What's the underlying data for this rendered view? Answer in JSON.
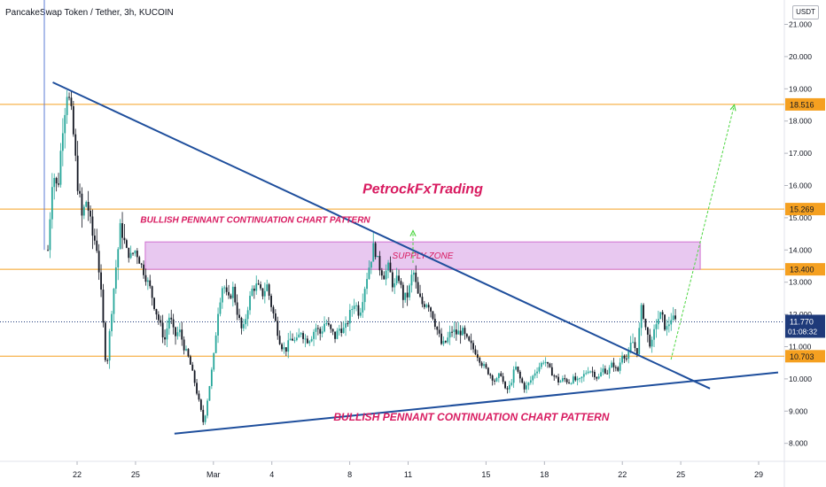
{
  "header": {
    "title": "PancakeSwap Token / Tether, 3h, KUCOIN",
    "currency": "USDT"
  },
  "colors": {
    "up": "#26a69a",
    "down": "#131722",
    "hline": "#f5a020",
    "trendline": "#1e4e9c",
    "arrow": "#4cd640",
    "zone_fill": "#e8c8f0",
    "zone_border": "#d070d0",
    "pattern_text": "#d81b60",
    "watermark": "#d81b60",
    "last_price": "#1e3a7a"
  },
  "chart_data": {
    "type": "candlestick",
    "symbol": "PancakeSwap Token / Tether",
    "interval": "3h",
    "exchange": "KUCOIN",
    "y_unit": "USDT",
    "ylim": [
      7.7,
      21.5
    ],
    "y_ticks": [
      "8.000",
      "9.000",
      "10.000",
      "11.000",
      "12.000",
      "13.000",
      "14.000",
      "15.000",
      "16.000",
      "17.000",
      "18.000",
      "19.000",
      "20.000",
      "21.000"
    ],
    "xlim": [
      "2021-02-20",
      "2021-03-30"
    ],
    "x_ticks": [
      {
        "date": "2021-02-22",
        "label": "22"
      },
      {
        "date": "2021-02-25",
        "label": "25"
      },
      {
        "date": "2021-03-01",
        "label": "Mar"
      },
      {
        "date": "2021-03-04",
        "label": "4"
      },
      {
        "date": "2021-03-08",
        "label": "8"
      },
      {
        "date": "2021-03-11",
        "label": "11"
      },
      {
        "date": "2021-03-15",
        "label": "15"
      },
      {
        "date": "2021-03-18",
        "label": "18"
      },
      {
        "date": "2021-03-22",
        "label": "22"
      },
      {
        "date": "2021-03-25",
        "label": "25"
      },
      {
        "date": "2021-03-29",
        "label": "29"
      }
    ],
    "price_path": [
      [
        "2021-02-20T12:00",
        14.0
      ],
      [
        "2021-02-20T18:00",
        16.5
      ],
      [
        "2021-02-21T00:00",
        15.8
      ],
      [
        "2021-02-21T06:00",
        17.8
      ],
      [
        "2021-02-21T12:00",
        19.0
      ],
      [
        "2021-02-21T18:00",
        18.0
      ],
      [
        "2021-02-22T00:00",
        16.2
      ],
      [
        "2021-02-22T06:00",
        15.0
      ],
      [
        "2021-02-22T12:00",
        15.6
      ],
      [
        "2021-02-22T18:00",
        14.5
      ],
      [
        "2021-02-23T00:00",
        14.2
      ],
      [
        "2021-02-23T06:00",
        12.5
      ],
      [
        "2021-02-23T12:00",
        10.2
      ],
      [
        "2021-02-23T18:00",
        12.0
      ],
      [
        "2021-02-24T00:00",
        13.5
      ],
      [
        "2021-02-24T06:00",
        14.8
      ],
      [
        "2021-02-24T12:00",
        14.0
      ],
      [
        "2021-02-24T18:00",
        13.8
      ],
      [
        "2021-02-25T00:00",
        14.0
      ],
      [
        "2021-02-25T06:00",
        13.6
      ],
      [
        "2021-02-25T12:00",
        13.2
      ],
      [
        "2021-02-25T18:00",
        12.8
      ],
      [
        "2021-02-26T00:00",
        12.2
      ],
      [
        "2021-02-26T06:00",
        11.7
      ],
      [
        "2021-02-26T12:00",
        11.2
      ],
      [
        "2021-02-26T18:00",
        12.0
      ],
      [
        "2021-02-27T00:00",
        11.3
      ],
      [
        "2021-02-27T06:00",
        11.5
      ],
      [
        "2021-02-27T12:00",
        11.0
      ],
      [
        "2021-02-27T18:00",
        10.6
      ],
      [
        "2021-02-28T00:00",
        10.0
      ],
      [
        "2021-02-28T06:00",
        9.3
      ],
      [
        "2021-02-28T12:00",
        8.6
      ],
      [
        "2021-02-28T18:00",
        9.6
      ],
      [
        "2021-03-01T00:00",
        10.6
      ],
      [
        "2021-03-01T06:00",
        12.2
      ],
      [
        "2021-03-01T12:00",
        13.0
      ],
      [
        "2021-03-01T18:00",
        12.4
      ],
      [
        "2021-03-02T00:00",
        12.8
      ],
      [
        "2021-03-02T06:00",
        12.0
      ],
      [
        "2021-03-02T12:00",
        11.4
      ],
      [
        "2021-03-02T18:00",
        12.2
      ],
      [
        "2021-03-03T00:00",
        12.8
      ],
      [
        "2021-03-03T06:00",
        12.9
      ],
      [
        "2021-03-03T12:00",
        12.6
      ],
      [
        "2021-03-03T18:00",
        12.9
      ],
      [
        "2021-03-04T00:00",
        12.2
      ],
      [
        "2021-03-04T06:00",
        11.6
      ],
      [
        "2021-03-04T12:00",
        11.0
      ],
      [
        "2021-03-04T18:00",
        10.9
      ],
      [
        "2021-03-05T00:00",
        11.3
      ],
      [
        "2021-03-05T06:00",
        11.1
      ],
      [
        "2021-03-05T12:00",
        11.5
      ],
      [
        "2021-03-05T18:00",
        11.2
      ],
      [
        "2021-03-06T00:00",
        11.3
      ],
      [
        "2021-03-06T06:00",
        11.6
      ],
      [
        "2021-03-06T12:00",
        11.4
      ],
      [
        "2021-03-06T18:00",
        11.8
      ],
      [
        "2021-03-07T00:00",
        11.5
      ],
      [
        "2021-03-07T06:00",
        11.3
      ],
      [
        "2021-03-07T12:00",
        11.6
      ],
      [
        "2021-03-07T18:00",
        11.5
      ],
      [
        "2021-03-08T00:00",
        12.0
      ],
      [
        "2021-03-08T06:00",
        12.4
      ],
      [
        "2021-03-08T12:00",
        12.0
      ],
      [
        "2021-03-08T18:00",
        12.8
      ],
      [
        "2021-03-09T00:00",
        13.5
      ],
      [
        "2021-03-09T06:00",
        14.1
      ],
      [
        "2021-03-09T12:00",
        13.5
      ],
      [
        "2021-03-09T18:00",
        13.2
      ],
      [
        "2021-03-10T00:00",
        13.5
      ],
      [
        "2021-03-10T06:00",
        12.8
      ],
      [
        "2021-03-10T12:00",
        13.2
      ],
      [
        "2021-03-10T18:00",
        12.5
      ],
      [
        "2021-03-11T00:00",
        12.6
      ],
      [
        "2021-03-11T06:00",
        13.4
      ],
      [
        "2021-03-11T12:00",
        12.6
      ],
      [
        "2021-03-11T18:00",
        12.3
      ],
      [
        "2021-03-12T00:00",
        12.4
      ],
      [
        "2021-03-12T06:00",
        12.0
      ],
      [
        "2021-03-12T12:00",
        11.5
      ],
      [
        "2021-03-12T18:00",
        11.0
      ],
      [
        "2021-03-13T00:00",
        11.2
      ],
      [
        "2021-03-13T06:00",
        11.5
      ],
      [
        "2021-03-13T12:00",
        11.4
      ],
      [
        "2021-03-13T18:00",
        11.5
      ],
      [
        "2021-03-14T00:00",
        11.2
      ],
      [
        "2021-03-14T06:00",
        11.0
      ],
      [
        "2021-03-14T12:00",
        10.8
      ],
      [
        "2021-03-14T18:00",
        10.5
      ],
      [
        "2021-03-15T00:00",
        10.3
      ],
      [
        "2021-03-15T06:00",
        10.1
      ],
      [
        "2021-03-15T12:00",
        9.9
      ],
      [
        "2021-03-15T18:00",
        10.2
      ],
      [
        "2021-03-16T00:00",
        9.6
      ],
      [
        "2021-03-16T06:00",
        9.8
      ],
      [
        "2021-03-16T12:00",
        10.4
      ],
      [
        "2021-03-16T18:00",
        10.0
      ],
      [
        "2021-03-17T00:00",
        9.7
      ],
      [
        "2021-03-17T06:00",
        9.9
      ],
      [
        "2021-03-17T12:00",
        10.2
      ],
      [
        "2021-03-17T18:00",
        10.4
      ],
      [
        "2021-03-18T00:00",
        10.6
      ],
      [
        "2021-03-18T06:00",
        10.3
      ],
      [
        "2021-03-18T12:00",
        10.1
      ],
      [
        "2021-03-18T18:00",
        9.9
      ],
      [
        "2021-03-19T00:00",
        10.0
      ],
      [
        "2021-03-19T06:00",
        9.9
      ],
      [
        "2021-03-19T12:00",
        10.0
      ],
      [
        "2021-03-19T18:00",
        9.9
      ],
      [
        "2021-03-20T00:00",
        10.1
      ],
      [
        "2021-03-20T06:00",
        10.3
      ],
      [
        "2021-03-20T12:00",
        10.2
      ],
      [
        "2021-03-20T18:00",
        10.0
      ],
      [
        "2021-03-21T00:00",
        10.3
      ],
      [
        "2021-03-21T06:00",
        10.2
      ],
      [
        "2021-03-21T12:00",
        10.5
      ],
      [
        "2021-03-21T18:00",
        10.2
      ],
      [
        "2021-03-22T00:00",
        10.8
      ],
      [
        "2021-03-22T06:00",
        10.6
      ],
      [
        "2021-03-22T12:00",
        11.2
      ],
      [
        "2021-03-22T18:00",
        10.8
      ],
      [
        "2021-03-23T00:00",
        12.3
      ],
      [
        "2021-03-23T06:00",
        11.4
      ],
      [
        "2021-03-23T12:00",
        11.0
      ],
      [
        "2021-03-23T18:00",
        11.8
      ],
      [
        "2021-03-24T00:00",
        12.0
      ],
      [
        "2021-03-24T06:00",
        11.5
      ],
      [
        "2021-03-24T12:00",
        11.9
      ],
      [
        "2021-03-24T18:00",
        11.77
      ]
    ],
    "horizontal_levels": [
      {
        "value": 18.516,
        "label": "18.516"
      },
      {
        "value": 15.269,
        "label": "15.269"
      },
      {
        "value": 13.4,
        "label": "13.400"
      },
      {
        "value": 10.703,
        "label": "10.703"
      }
    ],
    "last_price": {
      "value": 11.77,
      "label": "11.770",
      "countdown": "01:08:32"
    },
    "trendlines": [
      {
        "name": "upper",
        "from": [
          "2021-02-20T18:00",
          19.2
        ],
        "to": [
          "2021-03-26T12:00",
          9.7
        ]
      },
      {
        "name": "lower",
        "from": [
          "2021-02-27T00:00",
          8.3
        ],
        "to": [
          "2021-03-30T00:00",
          10.2
        ]
      }
    ],
    "zones": [
      {
        "label": "SUPPLY ZONE",
        "from": "2021-02-25T12:00",
        "to": "2021-03-26T00:00",
        "low": 13.4,
        "high": 14.25
      }
    ],
    "arrows": [
      {
        "from": [
          "2021-03-11T06:00",
          13.6
        ],
        "to": [
          "2021-03-11T06:00",
          14.6
        ]
      },
      {
        "from": [
          "2021-03-24T12:00",
          10.6
        ],
        "to": [
          "2021-03-27T18:00",
          18.5
        ]
      }
    ],
    "annotations": [
      {
        "text": "BULLISH PENNANT CONTINUATION CHART PATTERN",
        "at": [
          "2021-02-25T06:00",
          14.85
        ]
      },
      {
        "text": "BULLISH PENNANT CONTINUATION CHART PATTERN",
        "at": [
          "2021-03-14T06:00",
          8.7
        ]
      },
      {
        "text": "PetrockFxTrading",
        "at": [
          "2021-03-11T18:00",
          15.75
        ]
      }
    ]
  }
}
